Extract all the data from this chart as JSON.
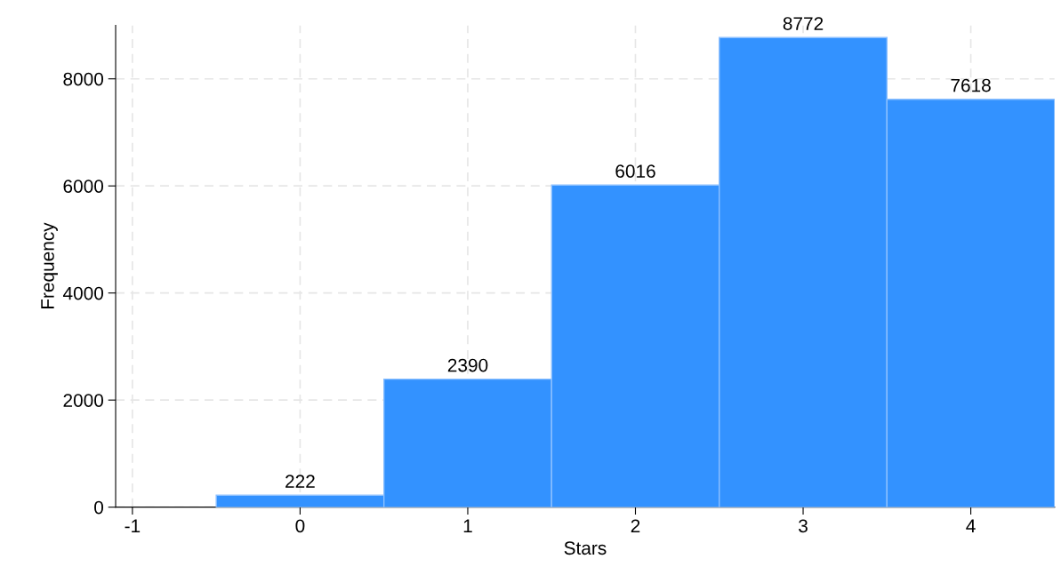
{
  "chart_data": {
    "type": "histogram",
    "xlabel": "Stars",
    "ylabel": "Frequency",
    "bins": [
      -0.5,
      0.5,
      1.5,
      2.5,
      3.5,
      4.5
    ],
    "values": [
      222,
      2390,
      6016,
      8772,
      7618
    ],
    "color": "#3392ff",
    "data_labels": true,
    "xlim": [
      -1.1,
      4.5
    ],
    "xticks": [
      {
        "value": -1,
        "label": "-1"
      },
      0,
      1,
      2,
      3,
      4
    ],
    "ylim": [
      0,
      9000
    ],
    "yticks": [
      0,
      2000,
      4000,
      6000,
      8000
    ],
    "grid": true,
    "legend": false
  }
}
